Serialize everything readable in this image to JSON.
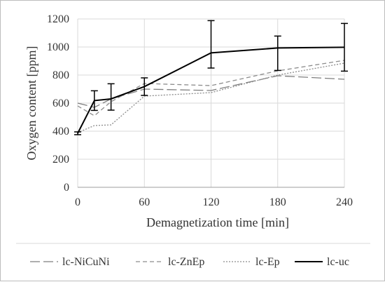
{
  "chart_data": {
    "type": "line",
    "title": "",
    "xlabel": "Demagnetization time [min]",
    "ylabel": "Oxygen content [ppm]",
    "xlim": [
      0,
      240
    ],
    "ylim": [
      0,
      1200
    ],
    "xticks": [
      0,
      60,
      120,
      180,
      240
    ],
    "yticks": [
      0,
      200,
      400,
      600,
      800,
      1000,
      1200
    ],
    "xtick_labels": [
      "0",
      "60",
      "120",
      "180",
      "240"
    ],
    "ytick_labels": [
      "0",
      "200",
      "400",
      "600",
      "800",
      "1000",
      "1200"
    ],
    "grid": true,
    "legend_position": "bottom",
    "series": [
      {
        "name": "lc-NiCuNi",
        "style": "long-dash",
        "color": "#7f7f7f",
        "points": [
          [
            0,
            600
          ],
          [
            15,
            570
          ],
          [
            30,
            630
          ],
          [
            60,
            700
          ],
          [
            120,
            690
          ],
          [
            180,
            795
          ],
          [
            240,
            770
          ]
        ]
      },
      {
        "name": "lc-ZnEp",
        "style": "dash",
        "color": "#8c8c8c",
        "points": [
          [
            0,
            580
          ],
          [
            15,
            510
          ],
          [
            30,
            610
          ],
          [
            60,
            740
          ],
          [
            120,
            725
          ],
          [
            180,
            830
          ],
          [
            240,
            905
          ]
        ]
      },
      {
        "name": "lc-Ep",
        "style": "dot",
        "color": "#8c8c8c",
        "points": [
          [
            0,
            390
          ],
          [
            15,
            440
          ],
          [
            30,
            445
          ],
          [
            60,
            650
          ],
          [
            120,
            675
          ],
          [
            180,
            800
          ],
          [
            240,
            885
          ]
        ]
      },
      {
        "name": "lc-uc",
        "style": "solid",
        "color": "#000000",
        "points": [
          [
            0,
            385
          ],
          [
            15,
            618
          ],
          [
            30,
            630
          ],
          [
            60,
            718
          ],
          [
            120,
            958
          ],
          [
            180,
            993
          ],
          [
            240,
            998
          ]
        ],
        "error": [
          [
            0,
            375,
            395
          ],
          [
            15,
            548,
            688
          ],
          [
            30,
            550,
            738
          ],
          [
            60,
            655,
            780
          ],
          [
            120,
            850,
            1188
          ],
          [
            180,
            833,
            1078
          ],
          [
            240,
            828,
            1168
          ]
        ]
      }
    ]
  }
}
